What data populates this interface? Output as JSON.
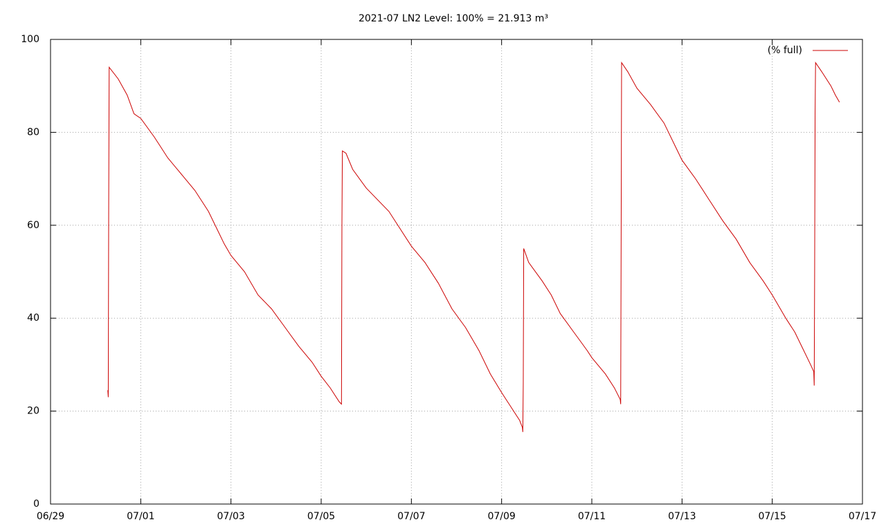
{
  "chart_data": {
    "type": "line",
    "title": "2021-07 LN2 Level: 100% = 21.913 m³",
    "x": [
      1.27,
      1.28,
      1.29,
      1.3,
      1.5,
      1.7,
      1.85,
      2.0,
      2.3,
      2.6,
      2.9,
      3.2,
      3.5,
      3.7,
      3.85,
      4.0,
      4.3,
      4.6,
      4.9,
      5.2,
      5.5,
      5.8,
      6.0,
      6.2,
      6.4,
      6.45,
      6.46,
      6.47,
      6.55,
      6.7,
      7.0,
      7.5,
      8.0,
      8.3,
      8.6,
      8.9,
      9.2,
      9.5,
      9.75,
      10.0,
      10.2,
      10.4,
      10.46,
      10.47,
      10.48,
      10.49,
      10.6,
      10.9,
      11.1,
      11.3,
      11.6,
      11.9,
      12.0,
      12.3,
      12.5,
      12.63,
      12.64,
      12.65,
      12.66,
      12.8,
      13.0,
      13.3,
      13.6,
      13.9,
      14.0,
      14.3,
      14.6,
      14.9,
      15.2,
      15.5,
      15.8,
      16.0,
      16.3,
      16.5,
      16.7,
      16.85,
      16.92,
      16.93,
      16.94,
      16.95,
      16.96,
      17.1,
      17.3,
      17.4,
      17.49
    ],
    "series": [
      {
        "name": "(% full)",
        "color": "#cc0000",
        "values": [
          24.5,
          23,
          65,
          94,
          91.5,
          88,
          84,
          83,
          79,
          74.5,
          71,
          67.5,
          63,
          59,
          56,
          53.5,
          50,
          45,
          42,
          38,
          34,
          30.5,
          27.5,
          25,
          22,
          21.5,
          60,
          76,
          75.5,
          72,
          68,
          63,
          55.5,
          52,
          47.5,
          42,
          38,
          33,
          28,
          24,
          21,
          18,
          16.5,
          15.5,
          26,
          55,
          52,
          48,
          45,
          41,
          37,
          33,
          31.5,
          28,
          25,
          22.5,
          21.5,
          57,
          95,
          93,
          89.5,
          86,
          82,
          76,
          74,
          70,
          65.5,
          61,
          57,
          52,
          48,
          45,
          40,
          37,
          33,
          30,
          28.5,
          25.5,
          50,
          84,
          95,
          93,
          90,
          88,
          86.5
        ]
      }
    ],
    "xlim": [
      0,
      18
    ],
    "xticks": [
      {
        "value": 0,
        "label": "06/29"
      },
      {
        "value": 2,
        "label": "07/01"
      },
      {
        "value": 4,
        "label": "07/03"
      },
      {
        "value": 6,
        "label": "07/05"
      },
      {
        "value": 8,
        "label": "07/07"
      },
      {
        "value": 10,
        "label": "07/09"
      },
      {
        "value": 12,
        "label": "07/11"
      },
      {
        "value": 14,
        "label": "07/13"
      },
      {
        "value": 16,
        "label": "07/15"
      },
      {
        "value": 18,
        "label": "07/17"
      }
    ],
    "ylim": [
      0,
      100
    ],
    "yticks": [
      0,
      20,
      40,
      60,
      80,
      100
    ],
    "grid": true,
    "legend": "top-right"
  }
}
